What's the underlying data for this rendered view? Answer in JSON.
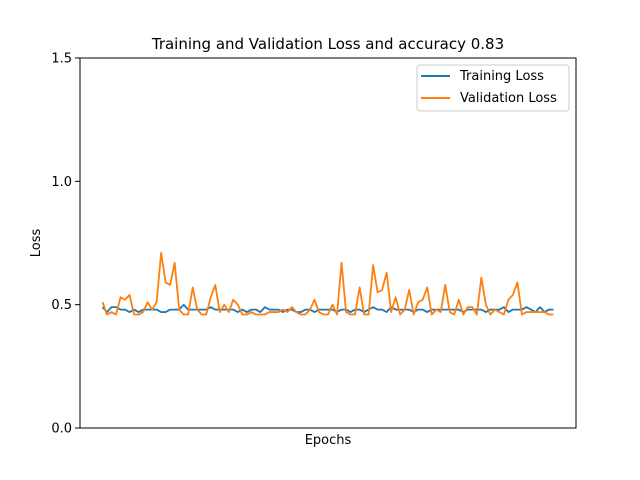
{
  "chart_data": {
    "type": "line",
    "title": "Training and Validation Loss and accuracy 0.83",
    "xlabel": "Epochs",
    "ylabel": "Loss",
    "ylim": [
      0,
      1.5
    ],
    "yticks": [
      "0.0",
      "0.5",
      "1.0",
      "1.5"
    ],
    "grid": false,
    "legend_position": "top-right",
    "colors": {
      "training": "#1f77b4",
      "validation": "#ff7f0e"
    },
    "series": [
      {
        "name": "Training Loss",
        "values": [
          0.49,
          0.47,
          0.49,
          0.49,
          0.48,
          0.48,
          0.47,
          0.48,
          0.47,
          0.48,
          0.48,
          0.48,
          0.48,
          0.47,
          0.47,
          0.48,
          0.48,
          0.48,
          0.5,
          0.48,
          0.48,
          0.48,
          0.48,
          0.48,
          0.49,
          0.48,
          0.48,
          0.48,
          0.48,
          0.48,
          0.47,
          0.48,
          0.47,
          0.48,
          0.48,
          0.47,
          0.49,
          0.48,
          0.48,
          0.48,
          0.47,
          0.48,
          0.48,
          0.47,
          0.47,
          0.48,
          0.48,
          0.47,
          0.48,
          0.48,
          0.48,
          0.48,
          0.47,
          0.48,
          0.48,
          0.47,
          0.48,
          0.48,
          0.47,
          0.48,
          0.49,
          0.48,
          0.48,
          0.47,
          0.49,
          0.48,
          0.48,
          0.48,
          0.48,
          0.47,
          0.48,
          0.48,
          0.47,
          0.48,
          0.48,
          0.48,
          0.48,
          0.48,
          0.48,
          0.48,
          0.47,
          0.48,
          0.48,
          0.48,
          0.48,
          0.47,
          0.48,
          0.48,
          0.48,
          0.49,
          0.47,
          0.48,
          0.48,
          0.48,
          0.49,
          0.48,
          0.47,
          0.49,
          0.47,
          0.48,
          0.48
        ]
      },
      {
        "name": "Validation Loss",
        "values": [
          0.51,
          0.46,
          0.47,
          0.46,
          0.53,
          0.52,
          0.54,
          0.46,
          0.46,
          0.47,
          0.51,
          0.48,
          0.51,
          0.71,
          0.59,
          0.58,
          0.67,
          0.48,
          0.46,
          0.46,
          0.57,
          0.48,
          0.46,
          0.46,
          0.53,
          0.58,
          0.47,
          0.5,
          0.47,
          0.52,
          0.5,
          0.46,
          0.46,
          0.47,
          0.46,
          0.46,
          0.46,
          0.47,
          0.47,
          0.47,
          0.48,
          0.47,
          0.49,
          0.47,
          0.46,
          0.46,
          0.48,
          0.52,
          0.47,
          0.46,
          0.46,
          0.5,
          0.46,
          0.67,
          0.47,
          0.46,
          0.46,
          0.57,
          0.46,
          0.46,
          0.66,
          0.55,
          0.56,
          0.63,
          0.47,
          0.53,
          0.46,
          0.48,
          0.56,
          0.46,
          0.51,
          0.52,
          0.57,
          0.46,
          0.48,
          0.47,
          0.58,
          0.47,
          0.46,
          0.52,
          0.46,
          0.49,
          0.49,
          0.46,
          0.61,
          0.5,
          0.46,
          0.48,
          0.47,
          0.46,
          0.52,
          0.54,
          0.59,
          0.46,
          0.47,
          0.47,
          0.47,
          0.47,
          0.47,
          0.46,
          0.46
        ]
      }
    ]
  }
}
